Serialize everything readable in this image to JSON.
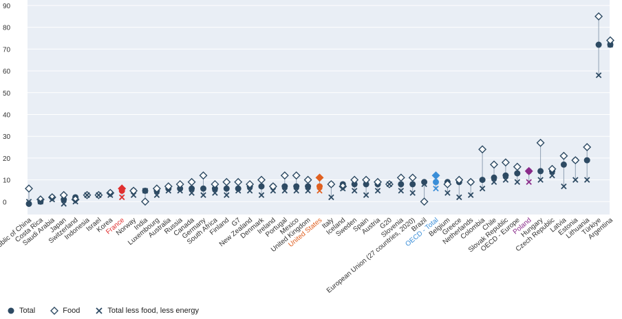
{
  "chart_data": {
    "type": "scatter",
    "title": "",
    "xlabel": "",
    "ylabel": "",
    "ylim": [
      -10,
      90
    ],
    "yticks": [
      0,
      10,
      20,
      30,
      40,
      50,
      60,
      70,
      80,
      90
    ],
    "grid": true,
    "legend_position": "bottom-left",
    "colors": {
      "total": "#2d4a63",
      "food": "#2d4a63",
      "core": "#2d4a63",
      "plot_bg": "#e9eef5",
      "gridline": "#ffffff",
      "stem": "#8fa0b3",
      "highlight_france": "#e03030",
      "highlight_us": "#e06020",
      "highlight_oecd": "#3a8ed8",
      "highlight_poland": "#8a2b8a"
    },
    "categories": [
      "People's Republic of China",
      "Costa Rica",
      "Saudi Arabia",
      "Japan",
      "Switzerland",
      "Indonesia",
      "Israel",
      "Korea",
      "France",
      "Norway",
      "India",
      "Luxembourg",
      "Australia",
      "Russia",
      "Canada",
      "Germany",
      "South Africa",
      "Finland",
      "G7",
      "New Zealand",
      "Denmark",
      "Ireland",
      "Portugal",
      "Mexico",
      "United Kingdom",
      "United States",
      "Italy",
      "Iceland",
      "Sweden",
      "Spain",
      "Austria",
      "G20",
      "Slovenia",
      "European Union (27 countries, 2020)",
      "Brazil",
      "OECD - Total",
      "Belgium",
      "Greece",
      "Netherlands",
      "Colombia",
      "Chile",
      "Slovak Republic",
      "OECD - Europe",
      "Poland",
      "Hungary",
      "Czech Republic",
      "Latvia",
      "Estonia",
      "Lithuania",
      "Türkiye",
      "Argentina"
    ],
    "highlight": {
      "France": "highlight_france",
      "United States": "highlight_us",
      "OECD - Total": "highlight_oecd",
      "Poland": "highlight_poland"
    },
    "series": [
      {
        "name": "Total",
        "marker": "circle",
        "values": [
          -1,
          0,
          2,
          1,
          2,
          3,
          3,
          4,
          5,
          5,
          5,
          5,
          6,
          6,
          6,
          6,
          6,
          6,
          6,
          7,
          7,
          7,
          7,
          7,
          7,
          7,
          8,
          8,
          8,
          8,
          8,
          8,
          8,
          8,
          9,
          9,
          9,
          9,
          9,
          10,
          11,
          12,
          13,
          14,
          14,
          14,
          17,
          19,
          19,
          72,
          72
        ]
      },
      {
        "name": "Food",
        "marker": "diamond",
        "values": [
          6,
          1,
          2,
          3,
          1,
          3,
          3,
          4,
          6,
          5,
          0,
          6,
          7,
          8,
          9,
          12,
          8,
          9,
          9,
          8,
          10,
          7,
          12,
          12,
          10,
          11,
          8,
          7,
          10,
          10,
          9,
          8,
          11,
          11,
          0,
          12,
          8,
          10,
          9,
          24,
          17,
          18,
          16,
          14,
          27,
          15,
          21,
          19,
          25,
          85,
          74
        ]
      },
      {
        "name": "Total less food, less energy",
        "marker": "x",
        "values": [
          0,
          0,
          1,
          -1,
          0,
          3,
          3,
          3,
          2,
          3,
          5,
          3,
          5,
          5,
          4,
          3,
          4,
          3,
          5,
          5,
          3,
          5,
          5,
          5,
          5,
          5,
          2,
          6,
          5,
          3,
          5,
          8,
          5,
          4,
          8,
          6,
          4,
          2,
          3,
          6,
          9,
          10,
          9,
          9,
          10,
          12,
          7,
          10,
          10,
          58,
          72
        ]
      }
    ]
  },
  "legend": {
    "items": [
      {
        "label": "Total",
        "marker": "circle"
      },
      {
        "label": "Food",
        "marker": "diamond"
      },
      {
        "label": "Total less food, less energy",
        "marker": "x"
      }
    ]
  }
}
